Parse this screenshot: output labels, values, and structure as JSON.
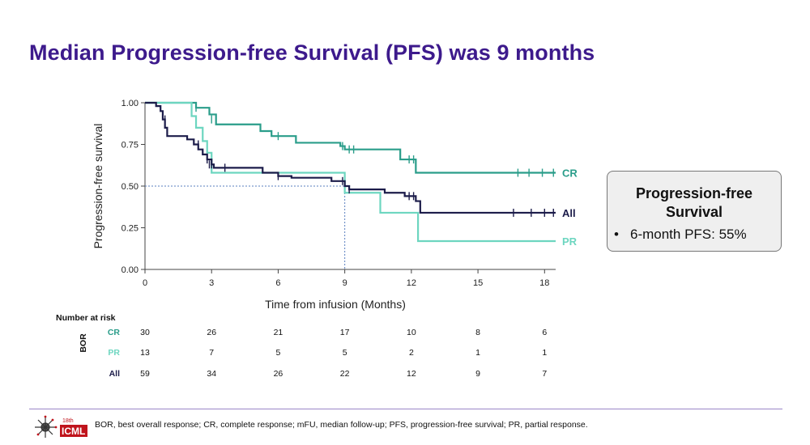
{
  "title": "Median Progression-free Survival (PFS) was 9 months",
  "chart_data": {
    "type": "line",
    "subtype": "kaplan-meier",
    "xlabel": "Time from infusion (Months)",
    "ylabel": "Progression-free survival",
    "xlim": [
      0,
      18.5
    ],
    "ylim": [
      0,
      1
    ],
    "x_ticks": [
      0,
      3,
      6,
      9,
      12,
      15,
      18
    ],
    "y_ticks": [
      0,
      0.25,
      0.5,
      0.75,
      1.0
    ],
    "y_tick_labels": [
      "0.00",
      "0.25",
      "0.50",
      "0.75",
      "1.00"
    ],
    "median_reference": {
      "x": 9,
      "y": 0.5
    },
    "series": [
      {
        "name": "CR",
        "color": "#2a9d8a",
        "steps": [
          [
            0,
            1.0
          ],
          [
            2.3,
            0.97
          ],
          [
            2.9,
            0.93
          ],
          [
            3.2,
            0.87
          ],
          [
            5.2,
            0.83
          ],
          [
            5.7,
            0.8
          ],
          [
            6.8,
            0.76
          ],
          [
            8.8,
            0.74
          ],
          [
            9.0,
            0.72
          ],
          [
            11.5,
            0.66
          ],
          [
            12.2,
            0.58
          ],
          [
            18.5,
            0.58
          ]
        ],
        "censors": [
          [
            2.3,
            0.97
          ],
          [
            3.0,
            0.9
          ],
          [
            6.0,
            0.8
          ],
          [
            8.9,
            0.74
          ],
          [
            9.2,
            0.72
          ],
          [
            9.4,
            0.72
          ],
          [
            11.9,
            0.66
          ],
          [
            12.1,
            0.66
          ],
          [
            16.8,
            0.58
          ],
          [
            17.3,
            0.58
          ],
          [
            17.9,
            0.58
          ],
          [
            18.4,
            0.58
          ]
        ],
        "end_label": "CR"
      },
      {
        "name": "PR",
        "color": "#6dd6c0",
        "steps": [
          [
            0,
            1.0
          ],
          [
            2.1,
            0.92
          ],
          [
            2.3,
            0.85
          ],
          [
            2.6,
            0.77
          ],
          [
            2.8,
            0.7
          ],
          [
            3.0,
            0.58
          ],
          [
            9.0,
            0.46
          ],
          [
            10.6,
            0.34
          ],
          [
            12.3,
            0.17
          ],
          [
            18.5,
            0.17
          ]
        ],
        "censors": [],
        "end_label": "PR"
      },
      {
        "name": "All",
        "color": "#1c1c4a",
        "steps": [
          [
            0,
            1.0
          ],
          [
            0.5,
            0.98
          ],
          [
            0.7,
            0.95
          ],
          [
            0.8,
            0.9
          ],
          [
            0.9,
            0.85
          ],
          [
            1.0,
            0.8
          ],
          [
            1.9,
            0.78
          ],
          [
            2.2,
            0.75
          ],
          [
            2.4,
            0.72
          ],
          [
            2.6,
            0.69
          ],
          [
            2.8,
            0.66
          ],
          [
            3.0,
            0.63
          ],
          [
            3.1,
            0.61
          ],
          [
            5.3,
            0.58
          ],
          [
            6.0,
            0.56
          ],
          [
            6.6,
            0.55
          ],
          [
            8.4,
            0.53
          ],
          [
            9.0,
            0.5
          ],
          [
            9.2,
            0.48
          ],
          [
            10.8,
            0.46
          ],
          [
            11.7,
            0.44
          ],
          [
            12.2,
            0.41
          ],
          [
            12.4,
            0.34
          ],
          [
            18.5,
            0.34
          ]
        ],
        "censors": [
          [
            0.9,
            0.9
          ],
          [
            2.4,
            0.75
          ],
          [
            2.8,
            0.66
          ],
          [
            2.9,
            0.63
          ],
          [
            3.0,
            0.63
          ],
          [
            3.6,
            0.61
          ],
          [
            6.0,
            0.56
          ],
          [
            8.9,
            0.53
          ],
          [
            9.2,
            0.48
          ],
          [
            11.9,
            0.44
          ],
          [
            12.1,
            0.44
          ],
          [
            16.6,
            0.34
          ],
          [
            17.4,
            0.34
          ],
          [
            18.0,
            0.34
          ],
          [
            18.4,
            0.34
          ]
        ],
        "end_label": "All"
      }
    ],
    "risk_table": {
      "heading": "Number at risk",
      "group_label": "BOR",
      "times": [
        0,
        3,
        6,
        9,
        12,
        15,
        18
      ],
      "rows": [
        {
          "label": "CR",
          "color": "#2a9d8a",
          "values": [
            "30",
            "26",
            "21",
            "17",
            "10",
            "8",
            "6"
          ]
        },
        {
          "label": "PR",
          "color": "#6dd6c0",
          "values": [
            "13",
            "7",
            "5",
            "5",
            "2",
            "1",
            "1"
          ]
        },
        {
          "label": "All",
          "color": "#1c1c4a",
          "values": [
            "59",
            "34",
            "26",
            "22",
            "12",
            "9",
            "7"
          ]
        }
      ]
    }
  },
  "pfs_box": {
    "title": "Progression-free\nSurvival",
    "bullet": "•",
    "item": "6-month PFS: 55%"
  },
  "logo": {
    "line1": "18th",
    "line2": "ICML",
    "accent_color": "#c0141c"
  },
  "footnote": "BOR, best overall response; CR, complete response; mFU, median follow-up; PFS, progression-free survival; PR, partial response."
}
